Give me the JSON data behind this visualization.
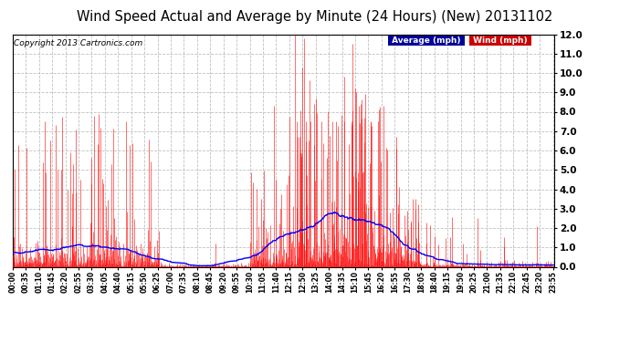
{
  "title": "Wind Speed Actual and Average by Minute (24 Hours) (New) 20131102",
  "copyright": "Copyright 2013 Cartronics.com",
  "ylim": [
    0.0,
    12.0
  ],
  "yticks": [
    0.0,
    1.0,
    2.0,
    3.0,
    4.0,
    5.0,
    6.0,
    7.0,
    8.0,
    9.0,
    10.0,
    11.0,
    12.0
  ],
  "avg_color": "#0000ff",
  "wind_color": "#ff0000",
  "bg_color": "#ffffff",
  "plot_bg_color": "#ffffff",
  "grid_color": "#c0c0c0",
  "legend_avg_bg": "#000099",
  "legend_wind_bg": "#cc0000",
  "legend_text_color": "#ffffff",
  "title_fontsize": 11,
  "copyright_fontsize": 7,
  "n_minutes": 1440
}
